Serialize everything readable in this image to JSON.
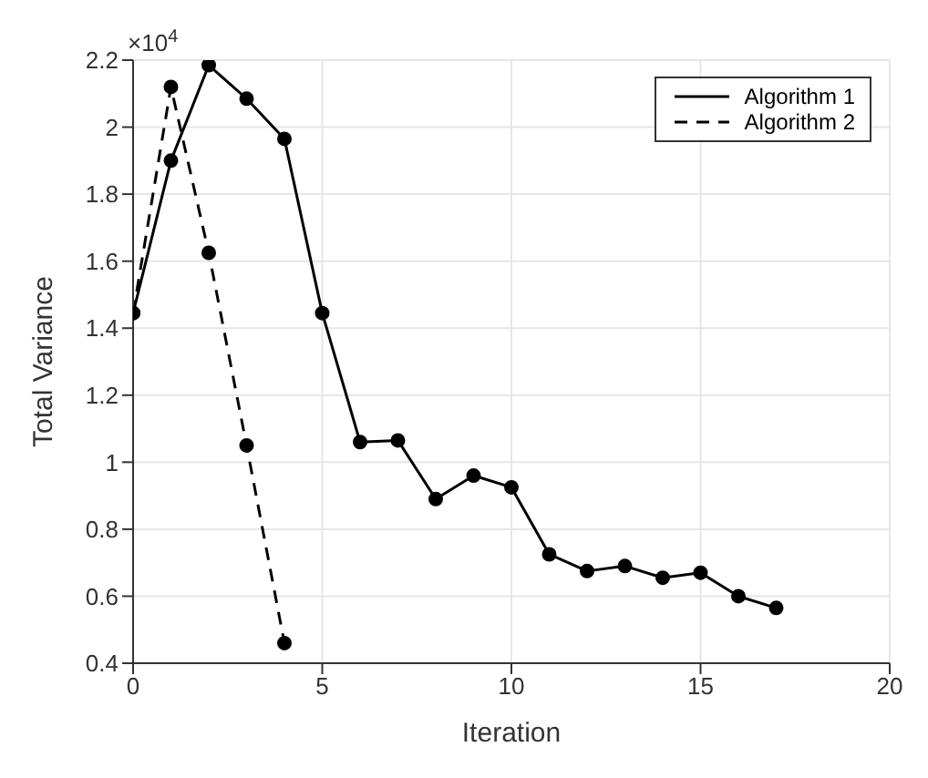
{
  "chart_data": {
    "type": "line",
    "xlabel": "Iteration",
    "ylabel": "Total Variance",
    "annotations": [
      "×10$^{4}$"
    ],
    "xlim": [
      0,
      20
    ],
    "xticks": [
      0,
      5,
      10,
      15,
      20
    ],
    "ylim": [
      0.4,
      2.2
    ],
    "yticks": [
      0.4,
      0.6,
      0.8,
      1,
      1.2,
      1.4,
      1.6,
      1.8,
      2,
      2.2
    ],
    "grid": true,
    "legend": "top right",
    "marker": "circle",
    "series": [
      {
        "name": "Algorithm 1",
        "color": "#000000",
        "line_style": "solid",
        "x": [
          0,
          1,
          2,
          3,
          4,
          5,
          6,
          7,
          8,
          9,
          10,
          11,
          12,
          13,
          14,
          15,
          16,
          17
        ],
        "values": [
          1.445,
          1.9,
          2.185,
          2.085,
          1.965,
          1.445,
          1.06,
          1.065,
          0.89,
          0.96,
          0.925,
          0.725,
          0.675,
          0.69,
          0.655,
          0.67,
          0.6,
          0.565
        ]
      },
      {
        "name": "Algorithm 2",
        "color": "#000000",
        "line_style": "dashed",
        "x": [
          0,
          1,
          2,
          3,
          4
        ],
        "values": [
          1.445,
          2.12,
          1.625,
          1.05,
          0.46
        ]
      }
    ]
  }
}
